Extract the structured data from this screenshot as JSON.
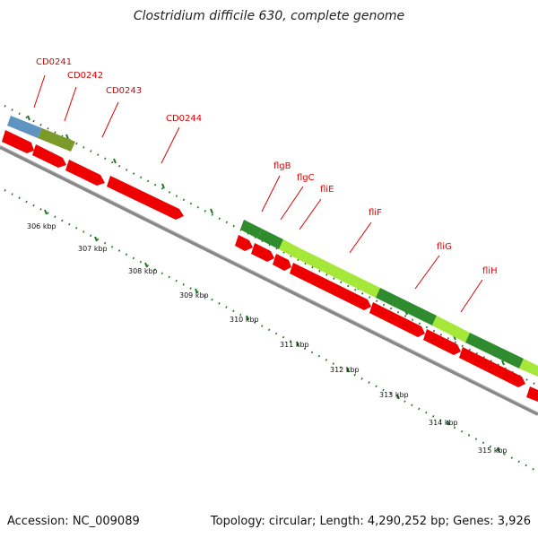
{
  "title": "Clostridium difficile 630, complete genome",
  "accession": "Accession: NC_009089",
  "summary": "Topology: circular; Length: 4,290,252 bp; Genes: 3,926",
  "colors": {
    "cds_forward": "#ee0000",
    "gene_blue": "#5f93c0",
    "gene_olive": "#7c9a2a",
    "gene_darkgreen": "#2e8b2e",
    "gene_lightgreen": "#a6e83a",
    "backbone": "#888888",
    "tick_green": "#1f7a1f",
    "label_red": "#dd0000"
  },
  "scale_labels": [
    {
      "text": "306 kbp"
    },
    {
      "text": "307 kbp"
    },
    {
      "text": "308 kbp"
    },
    {
      "text": "309 kbp"
    },
    {
      "text": "310 kbp"
    },
    {
      "text": "311 kbp"
    },
    {
      "text": "312 kbp"
    },
    {
      "text": "313 kbp"
    },
    {
      "text": "314 kbp"
    },
    {
      "text": "315 kbp"
    }
  ],
  "gene_labels": [
    {
      "name": "CD0241"
    },
    {
      "name": "CD0242"
    },
    {
      "name": "CD0243"
    },
    {
      "name": "CD0244"
    },
    {
      "name": "flgB"
    },
    {
      "name": "flgC"
    },
    {
      "name": "fliE"
    },
    {
      "name": "fliF"
    },
    {
      "name": "fliG"
    },
    {
      "name": "fliH"
    }
  ]
}
